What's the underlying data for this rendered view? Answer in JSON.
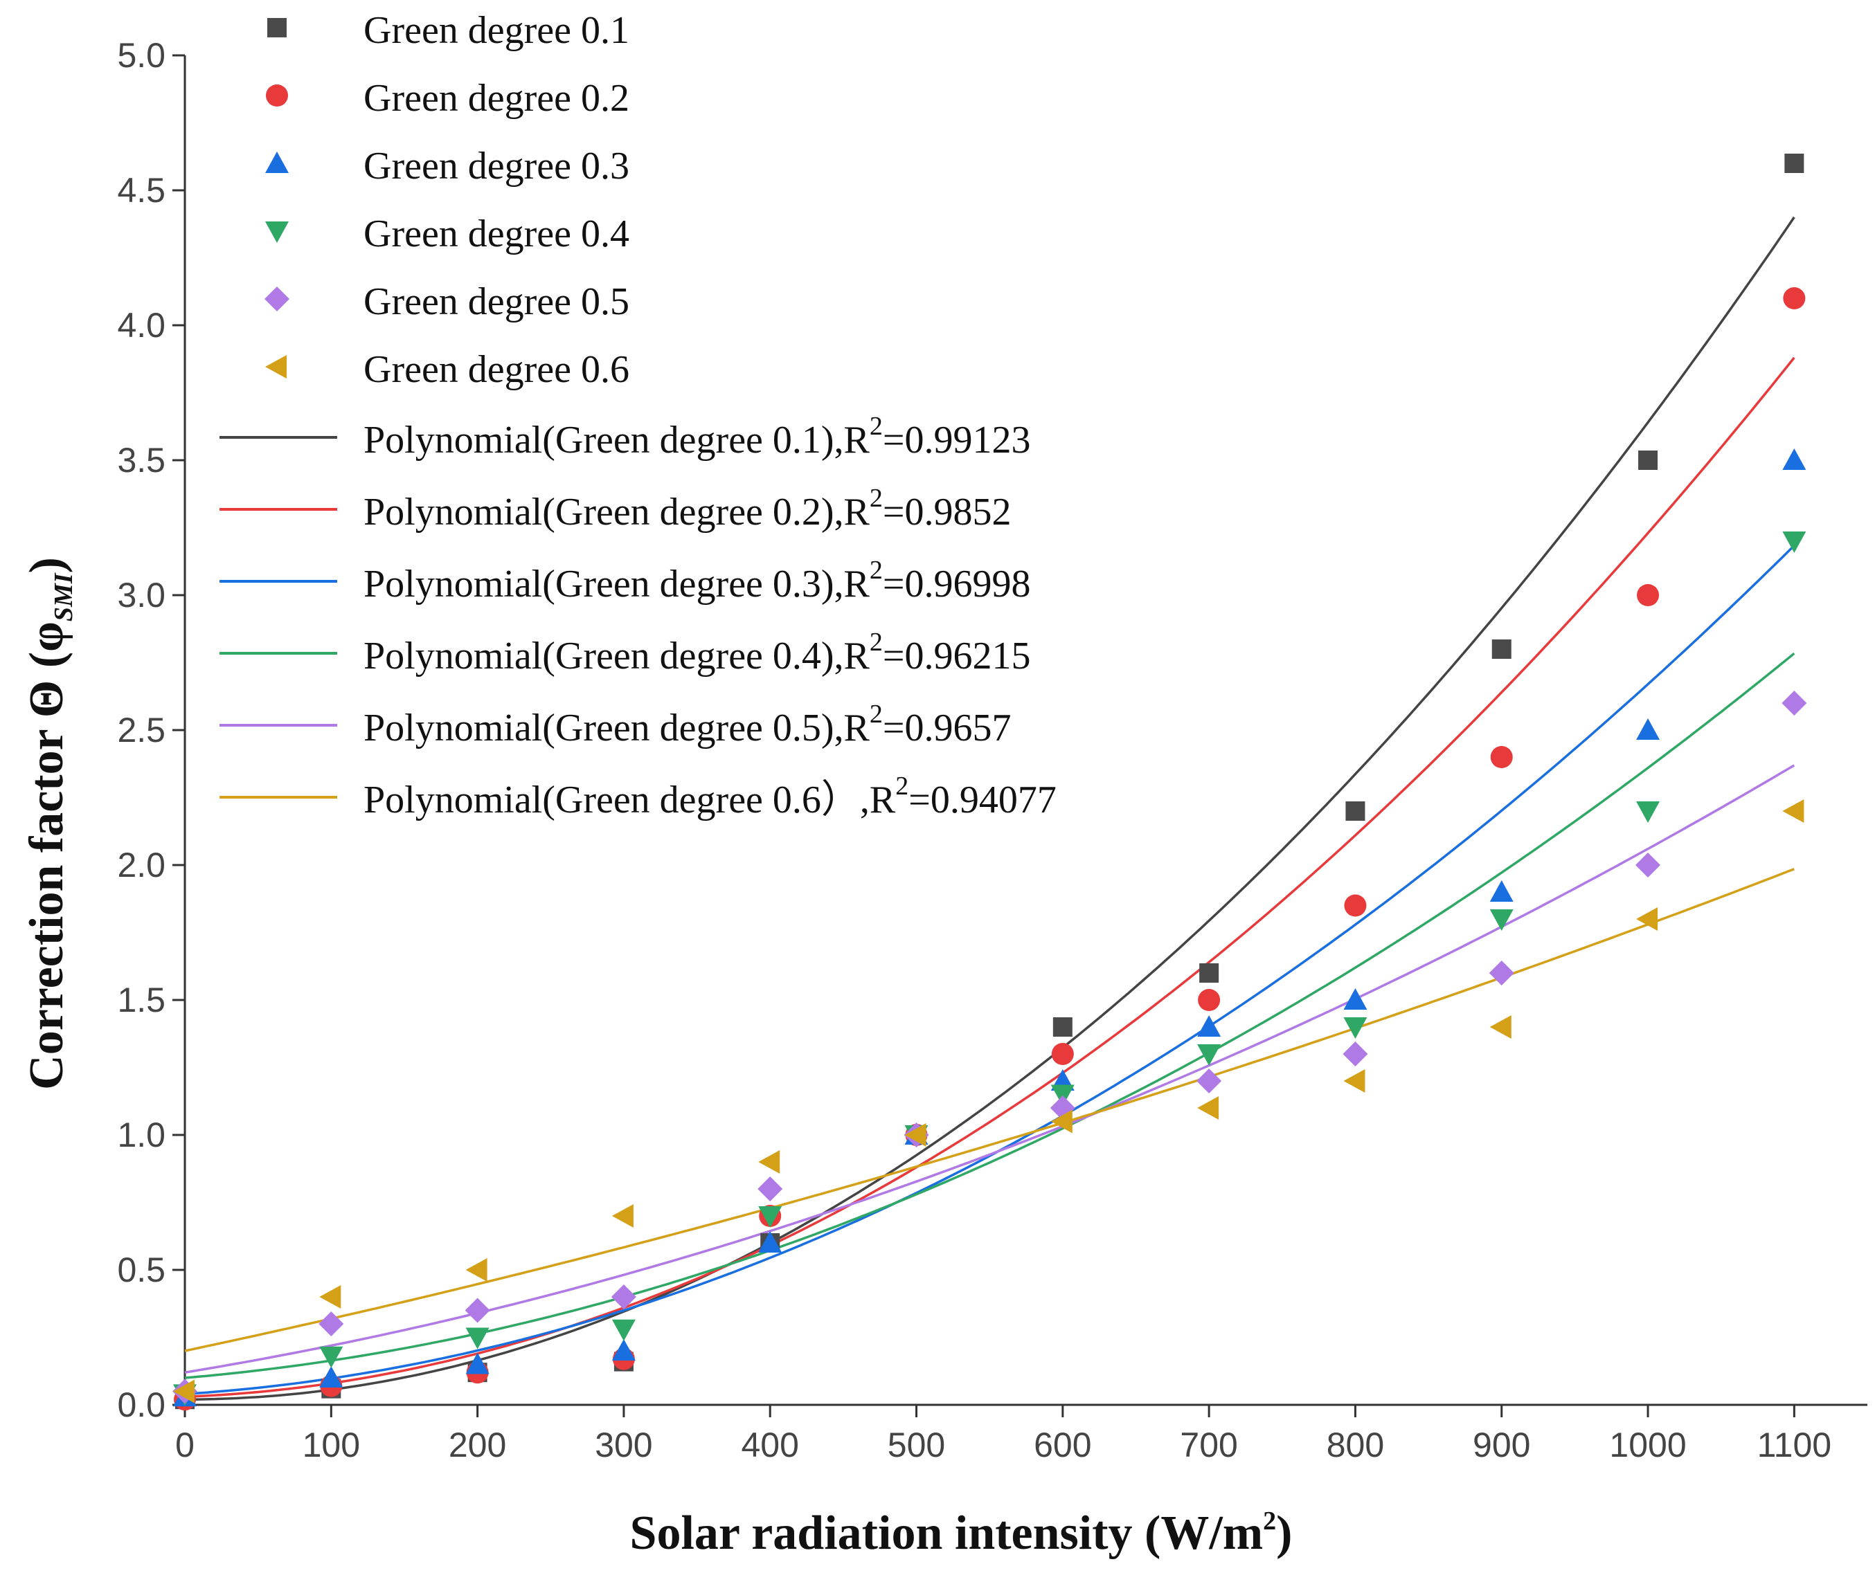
{
  "chart_data": {
    "type": "scatter",
    "title": "",
    "xlabel": "Solar radiation intensity (W/m",
    "xlabel_sup": "2",
    "xlabel_tail": ")",
    "ylabel": "Correction factor Θ (φ",
    "ylabel_sub": "SMI",
    "ylabel_tail": ")",
    "xlim": [
      0,
      1150
    ],
    "ylim": [
      0,
      5.0
    ],
    "x_ticks": [
      "0",
      "100",
      "200",
      "300",
      "400",
      "500",
      "600",
      "700",
      "800",
      "900",
      "1000",
      "1100"
    ],
    "y_ticks": [
      "0.0",
      "0.5",
      "1.0",
      "1.5",
      "2.0",
      "2.5",
      "3.0",
      "3.5",
      "4.0",
      "4.5",
      "5.0"
    ],
    "x": [
      0,
      100,
      200,
      300,
      400,
      500,
      600,
      700,
      800,
      900,
      1000,
      1100
    ],
    "legend_position": "top-left",
    "series": [
      {
        "name": "Green degree 0.1",
        "marker": "square",
        "color": "#4a4a4a",
        "values": [
          0.02,
          0.06,
          0.12,
          0.16,
          0.6,
          1.0,
          1.4,
          1.6,
          2.2,
          2.8,
          3.5,
          4.6
        ],
        "fit_label": "Polynomial(Green degree 0.1),R",
        "r2_sup": "2",
        "r2_value": "=0.99123",
        "fit_line_color": "#444444",
        "fit_coeffs": [
          0.02,
          0.0,
          3.62e-06
        ]
      },
      {
        "name": "Green degree 0.2",
        "marker": "circle",
        "color": "#e8393b",
        "values": [
          0.02,
          0.07,
          0.12,
          0.17,
          0.7,
          1.0,
          1.3,
          1.5,
          1.85,
          2.4,
          3.0,
          4.1
        ],
        "fit_label": "Polynomial(Green degree 0.2),R",
        "r2_sup": "2",
        "r2_value": "=0.9852",
        "fit_line_color": "#e8393b",
        "fit_coeffs": [
          0.03,
          0.0002,
          3e-06
        ]
      },
      {
        "name": "Green degree 0.3",
        "marker": "triangle-up",
        "color": "#1a6fe0",
        "values": [
          0.03,
          0.1,
          0.15,
          0.2,
          0.6,
          1.0,
          1.2,
          1.4,
          1.5,
          1.9,
          2.5,
          3.5
        ],
        "fit_label": "Polynomial(Green degree 0.3),R",
        "r2_sup": "2",
        "r2_value": "=0.96998",
        "fit_line_color": "#1a6fe0",
        "fit_coeffs": [
          0.04,
          0.00035,
          2.28e-06
        ]
      },
      {
        "name": "Green degree 0.4",
        "marker": "triangle-down",
        "color": "#2fa866",
        "values": [
          0.04,
          0.18,
          0.25,
          0.28,
          0.7,
          1.0,
          1.15,
          1.3,
          1.4,
          1.8,
          2.2,
          3.2
        ],
        "fit_label": "Polynomial(Green degree 0.4),R",
        "r2_sup": "2",
        "r2_value": "=0.96215",
        "fit_line_color": "#2fa866",
        "fit_coeffs": [
          0.1,
          0.00046,
          1.8e-06
        ]
      },
      {
        "name": "Green degree 0.5",
        "marker": "diamond",
        "color": "#b07ae6",
        "values": [
          0.05,
          0.3,
          0.35,
          0.4,
          0.8,
          1.0,
          1.1,
          1.2,
          1.3,
          1.6,
          2.0,
          2.6
        ],
        "fit_label": "Polynomial(Green degree 0.5),R",
        "r2_sup": "2",
        "r2_value": "=0.9657",
        "fit_line_color": "#b07ae6",
        "fit_coeffs": [
          0.12,
          0.00089,
          1.05e-06
        ]
      },
      {
        "name": "Green degree 0.6",
        "marker": "triangle-left",
        "color": "#d4a017",
        "values": [
          0.05,
          0.4,
          0.5,
          0.7,
          0.9,
          1.0,
          1.05,
          1.1,
          1.2,
          1.4,
          1.8,
          2.2
        ],
        "fit_label": "Polynomial(Green degree 0.6）,R",
        "r2_sup": "2",
        "r2_value": "=0.94077",
        "fit_line_color": "#d4a017",
        "fit_coeffs": [
          0.2,
          0.00115,
          4.3e-07
        ]
      }
    ]
  }
}
